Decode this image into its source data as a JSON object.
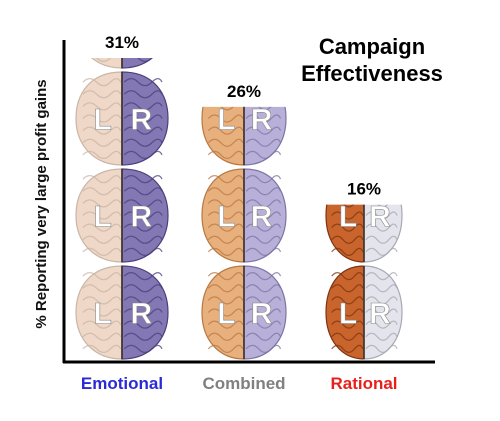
{
  "chart_data": {
    "type": "bar",
    "title_line1": "Campaign",
    "title_line2": "Effectiveness",
    "ylabel": "% Reporting very large profit gains",
    "xlabel": "",
    "categories": [
      "Emotional",
      "Combined",
      "Rational"
    ],
    "values": [
      31,
      26,
      16
    ],
    "value_labels": [
      "31%",
      "26%",
      "16%"
    ],
    "category_colors": [
      "#2a2ad6",
      "#808080",
      "#e8201c"
    ],
    "bar_styles": [
      {
        "left": "#f0d8c8",
        "right": "#8478b4",
        "fold": "#c9b6a6",
        "rfold": "#4c3f7c"
      },
      {
        "left": "#e8b07c",
        "right": "#b8b0d8",
        "fold": "#b87844",
        "rfold": "#7d74a6"
      },
      {
        "left": "#c8642c",
        "right": "#e4e4ec",
        "fold": "#7e3412",
        "rfold": "#a8a8b6"
      }
    ],
    "hemisphere_labels": [
      "L",
      "R"
    ],
    "ylim": [
      0,
      33
    ],
    "grid": false,
    "legend": "none"
  }
}
